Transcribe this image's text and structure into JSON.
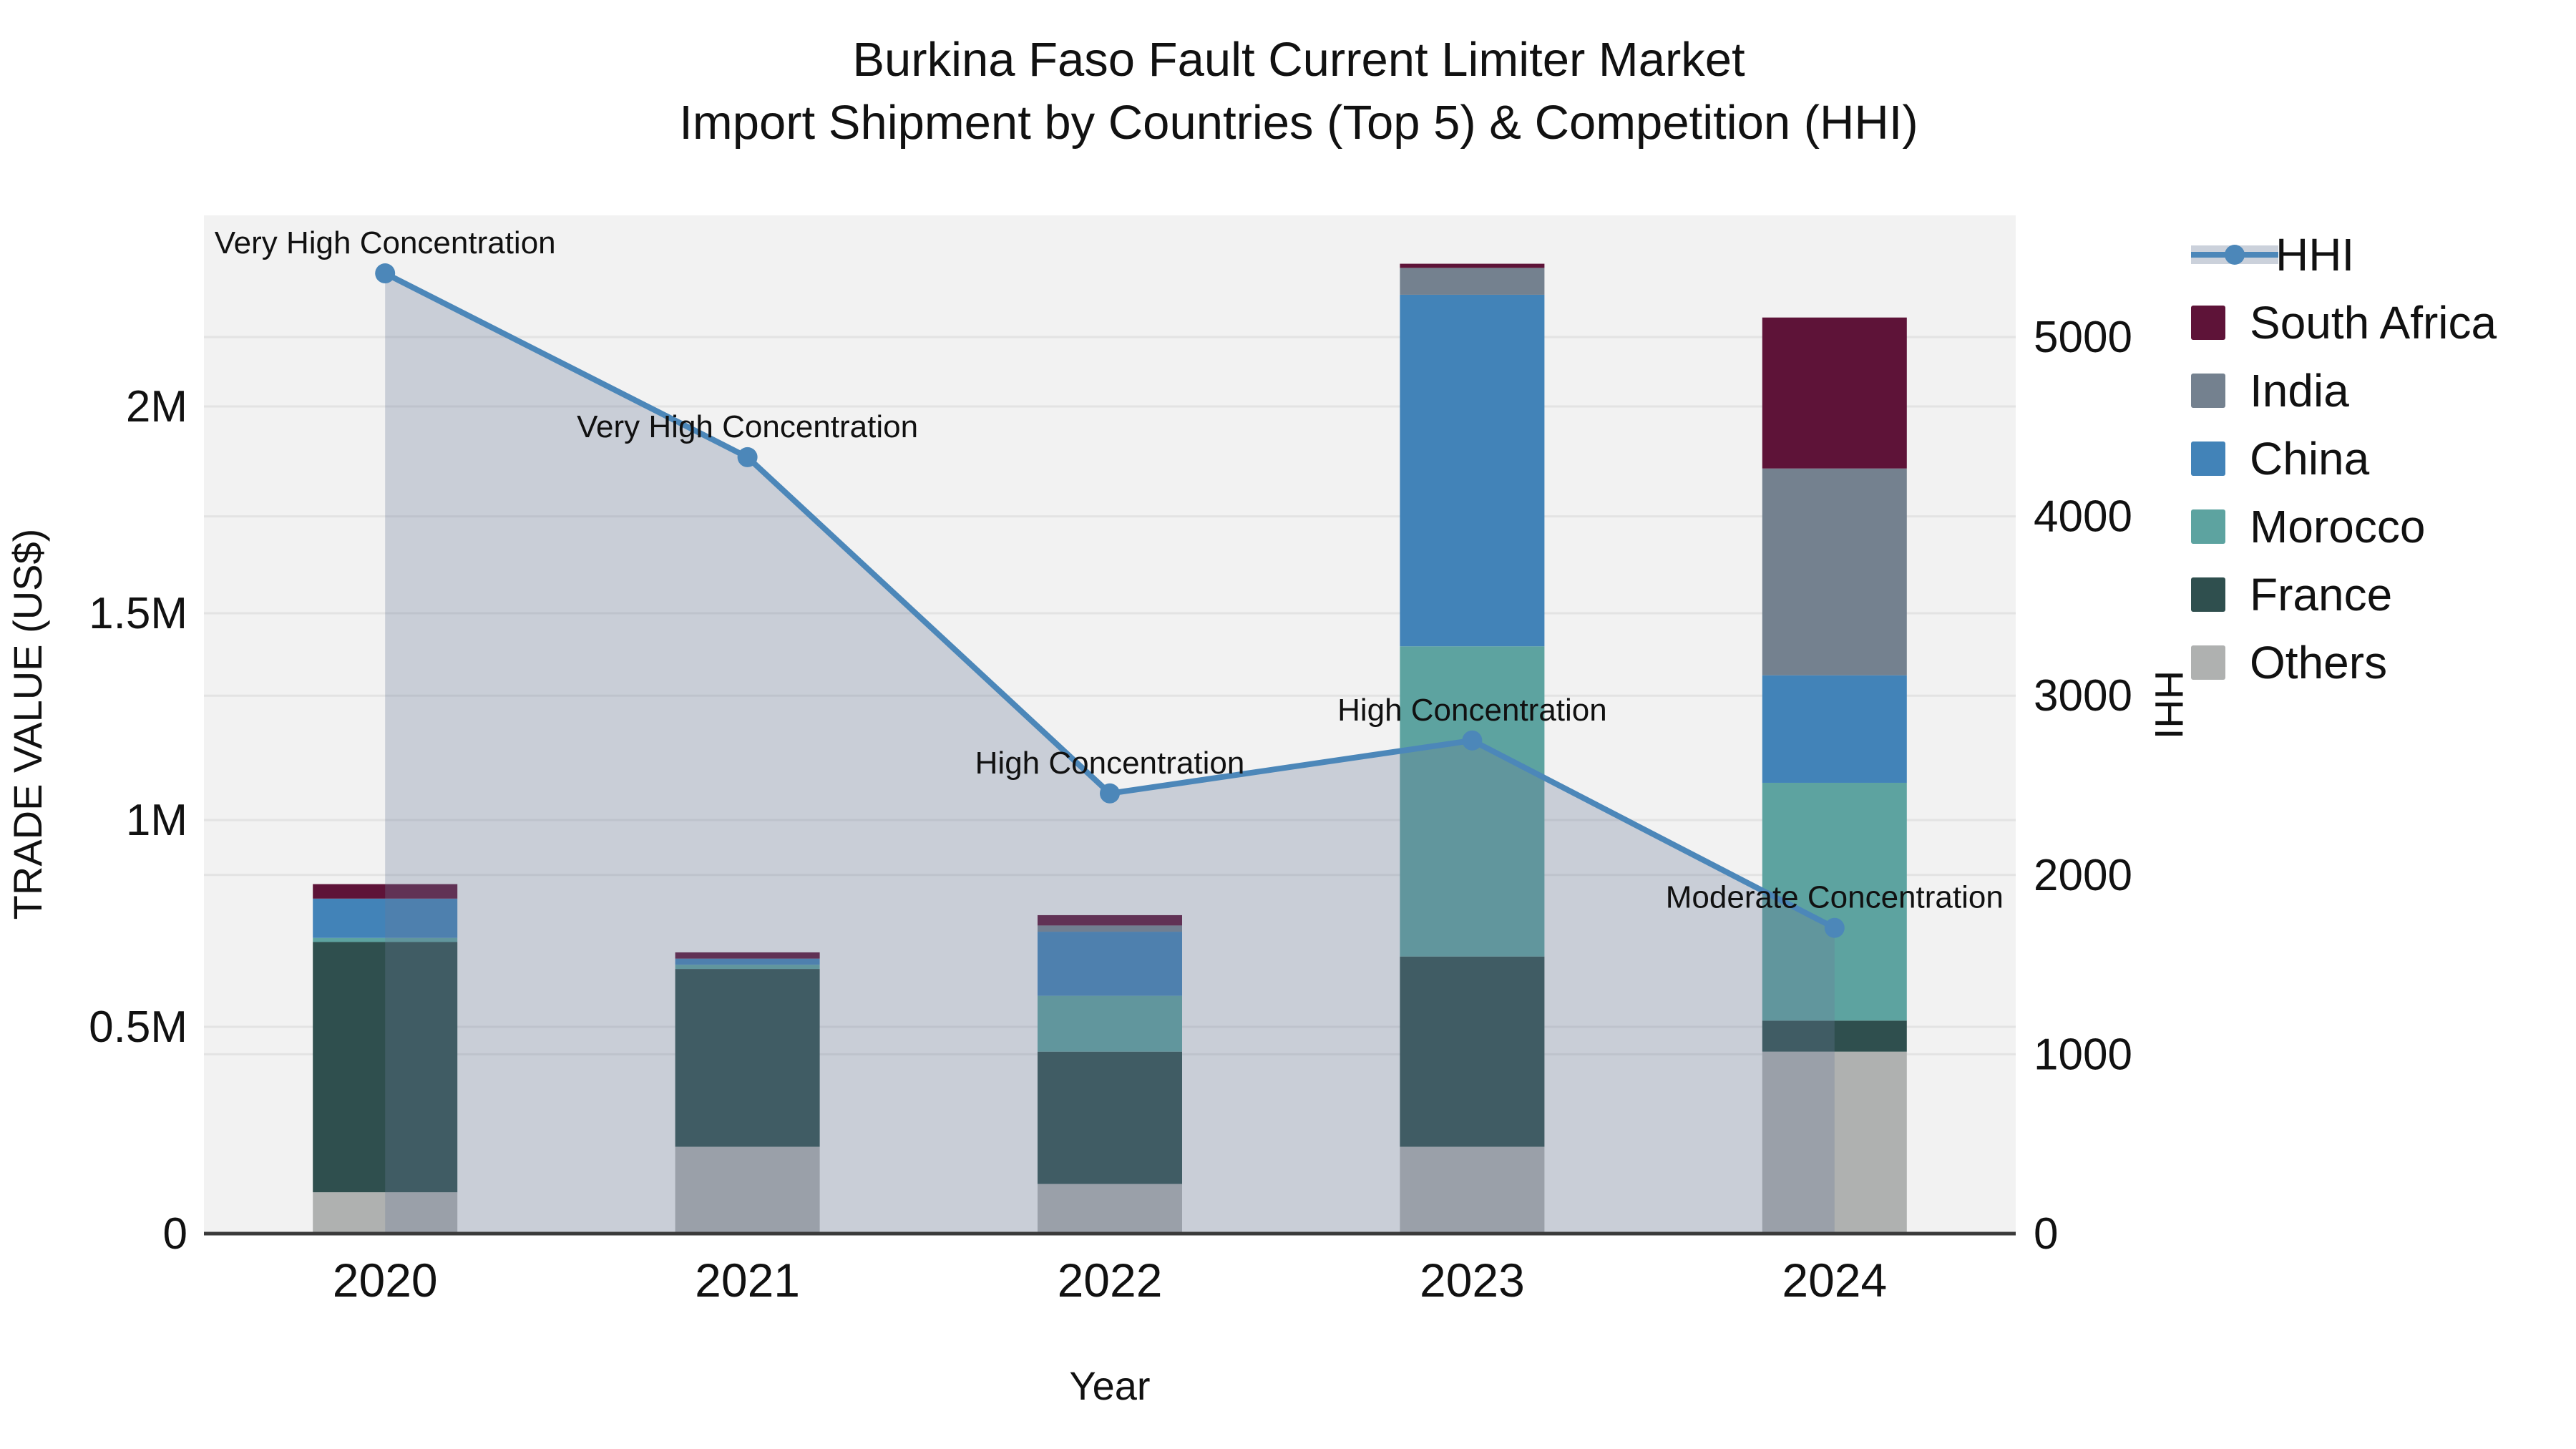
{
  "title": {
    "line1": "Burkina Faso Fault Current Limiter Market",
    "line2": "Import Shipment by Countries (Top 5) & Competition (HHI)"
  },
  "axes": {
    "x": {
      "title": "Year",
      "tick_labels": [
        "2020",
        "2021",
        "2022",
        "2023",
        "2024"
      ]
    },
    "y_left": {
      "title": "TRADE VALUE (US$)",
      "tick_labels": [
        "0",
        "0.5M",
        "1M",
        "1.5M",
        "2M"
      ],
      "tick_values": [
        0,
        500000,
        1000000,
        1500000,
        2000000
      ],
      "range": [
        0,
        2460000
      ]
    },
    "y_right": {
      "title": "HHI",
      "tick_labels": [
        "0",
        "1000",
        "2000",
        "3000",
        "4000",
        "5000"
      ],
      "tick_values": [
        0,
        1000,
        2000,
        3000,
        4000,
        5000
      ],
      "range": [
        0,
        5680
      ]
    }
  },
  "legend": {
    "items": [
      {
        "label": "HHI",
        "type": "line",
        "color": "#4C87B9"
      },
      {
        "label": "South Africa",
        "type": "swatch",
        "color": "#5E1338"
      },
      {
        "label": "India",
        "type": "swatch",
        "color": "#74818F"
      },
      {
        "label": "China",
        "type": "swatch",
        "color": "#4283B8"
      },
      {
        "label": "Morocco",
        "type": "swatch",
        "color": "#5DA3A0"
      },
      {
        "label": "France",
        "type": "swatch",
        "color": "#2F4F4E"
      },
      {
        "label": "Others",
        "type": "swatch",
        "color": "#AFB1B0"
      }
    ]
  },
  "chart_data": {
    "type": "bar+line",
    "categories": [
      "2020",
      "2021",
      "2022",
      "2023",
      "2024"
    ],
    "bar_stack_order_bottom_to_top": [
      "Others",
      "France",
      "Morocco",
      "China",
      "India",
      "South Africa"
    ],
    "series": [
      {
        "name": "Others",
        "color": "#AFB1B0",
        "values": [
          100000,
          210000,
          120000,
          210000,
          440000
        ]
      },
      {
        "name": "France",
        "color": "#2F4F4E",
        "values": [
          605000,
          430000,
          320000,
          460000,
          75000
        ]
      },
      {
        "name": "Morocco",
        "color": "#5DA3A0",
        "values": [
          10000,
          10000,
          135000,
          750000,
          575000
        ]
      },
      {
        "name": "China",
        "color": "#4283B8",
        "values": [
          95000,
          15000,
          155000,
          850000,
          260000
        ]
      },
      {
        "name": "India",
        "color": "#74818F",
        "values": [
          0,
          0,
          15000,
          65000,
          500000
        ]
      },
      {
        "name": "South Africa",
        "color": "#5E1338",
        "values": [
          35000,
          15000,
          25000,
          10000,
          365000
        ]
      }
    ],
    "bar_totals": [
      845000,
      680000,
      770000,
      2345000,
      2215000
    ],
    "line": {
      "name": "HHI",
      "color": "#4C87B9",
      "area_fill": "rgba(105,122,152,0.30)",
      "values": [
        5355,
        4330,
        2455,
        2750,
        1705
      ]
    },
    "annotations": [
      "Very High Concentration",
      "Very High Concentration",
      "High Concentration",
      "High Concentration",
      "Moderate Concentration"
    ],
    "xlabel": "Year",
    "ylabel_left": "TRADE VALUE (US$)",
    "ylabel_right": "HHI",
    "grid": true,
    "legend_position": "right"
  },
  "colors": {
    "figure_bg": "#ffffff",
    "plot_bg": "#f2f2f2",
    "grid": "#e3e3e3",
    "axis_line": "#3a3a3a",
    "text": "#111111"
  }
}
